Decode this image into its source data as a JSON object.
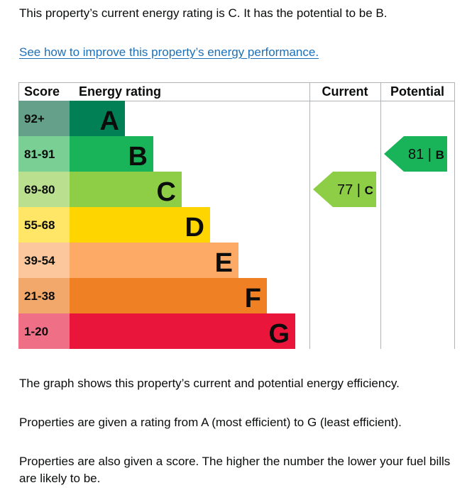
{
  "intro": "This property’s current energy rating is C. It has the potential to be B.",
  "link_text": "See how to improve this property’s energy performance.",
  "chart_data": {
    "type": "bar",
    "headers": {
      "score": "Score",
      "rating": "Energy rating",
      "current": "Current",
      "potential": "Potential"
    },
    "bands": [
      {
        "letter": "A",
        "range": "92+",
        "color": "#008054",
        "score_color": "#64a08a"
      },
      {
        "letter": "B",
        "range": "81-91",
        "color": "#19b459",
        "score_color": "#79cf94"
      },
      {
        "letter": "C",
        "range": "69-80",
        "color": "#8dce46",
        "score_color": "#badf8e"
      },
      {
        "letter": "D",
        "range": "55-68",
        "color": "#ffd500",
        "score_color": "#ffe666"
      },
      {
        "letter": "E",
        "range": "39-54",
        "color": "#fcaa65",
        "score_color": "#fcc79d"
      },
      {
        "letter": "F",
        "range": "21-38",
        "color": "#ef8023",
        "score_color": "#f3a86b"
      },
      {
        "letter": "G",
        "range": "1-20",
        "color": "#e9153b",
        "score_color": "#ef7086"
      }
    ],
    "current": {
      "score": 77,
      "band": "C",
      "label": "77 | C"
    },
    "potential": {
      "score": 81,
      "band": "B",
      "label": "81 | B"
    }
  },
  "paragraphs": [
    "The graph shows this property’s current and potential energy efficiency.",
    "Properties are given a rating from A (most efficient) to G (least efficient).",
    "Properties are also given a score. The higher the number the lower your fuel bills are likely to be."
  ]
}
